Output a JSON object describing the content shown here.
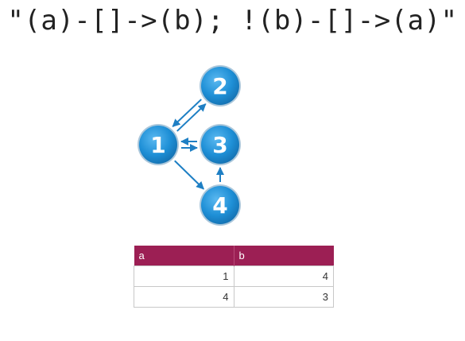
{
  "query": "\"(a)-[]->(b); !(b)-[]->(a)\"",
  "graph": {
    "node_color": "#1e8fd6",
    "edge_color": "#1e7fc4",
    "nodes": [
      {
        "id": "1",
        "label": "1"
      },
      {
        "id": "2",
        "label": "2"
      },
      {
        "id": "3",
        "label": "3"
      },
      {
        "id": "4",
        "label": "4"
      }
    ],
    "edges": [
      {
        "from": "1",
        "to": "2"
      },
      {
        "from": "2",
        "to": "1"
      },
      {
        "from": "1",
        "to": "3"
      },
      {
        "from": "3",
        "to": "1"
      },
      {
        "from": "1",
        "to": "4"
      },
      {
        "from": "4",
        "to": "3"
      }
    ]
  },
  "table": {
    "header_color": "#9c1f54",
    "columns": [
      "a",
      "b"
    ],
    "rows": [
      [
        "1",
        "4"
      ],
      [
        "4",
        "3"
      ]
    ]
  }
}
